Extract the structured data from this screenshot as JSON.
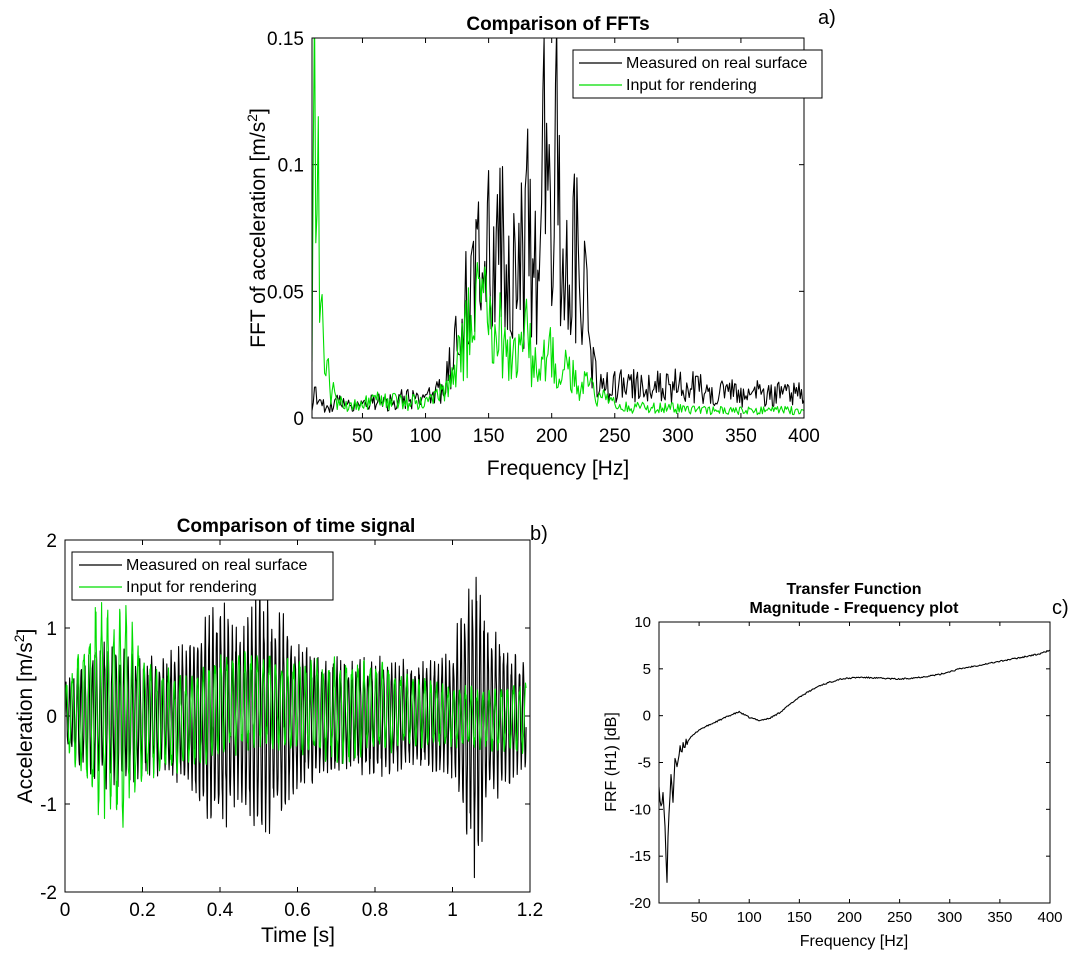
{
  "chart_data": [
    {
      "panel": "a)",
      "type": "line",
      "title": "Comparison of FFTs",
      "xlabel": "Frequency [Hz]",
      "ylabel_main": "FFT of acceleration [m/s",
      "ylabel_sup": "2",
      "ylabel_close": "]",
      "xlim": [
        10,
        400
      ],
      "ylim": [
        0,
        0.15
      ],
      "xticks": [
        50,
        100,
        150,
        200,
        250,
        300,
        350,
        400
      ],
      "yticks": [
        0,
        0.05,
        0.1,
        0.15
      ],
      "ytick_labels": [
        "0",
        "0.05",
        "0.1",
        "0.15"
      ],
      "legend_position": "top-right",
      "series": [
        {
          "name": "Measured on real surface",
          "color": "#000000",
          "x": [
            10,
            15,
            20,
            30,
            40,
            50,
            60,
            70,
            80,
            90,
            100,
            110,
            115,
            120,
            125,
            130,
            135,
            140,
            143,
            146,
            150,
            155,
            160,
            163,
            166,
            170,
            175,
            178,
            181,
            185,
            190,
            193,
            195,
            197,
            200,
            203,
            205,
            208,
            212,
            215,
            218,
            222,
            226,
            230,
            235,
            240,
            250,
            260,
            270,
            280,
            290,
            300,
            310,
            320,
            330,
            340,
            350,
            360,
            370,
            380,
            390,
            400
          ],
          "y": [
            0.006,
            0.011,
            0.004,
            0.006,
            0.005,
            0.006,
            0.007,
            0.006,
            0.008,
            0.007,
            0.008,
            0.01,
            0.014,
            0.02,
            0.028,
            0.038,
            0.052,
            0.065,
            0.083,
            0.06,
            0.07,
            0.05,
            0.075,
            0.058,
            0.07,
            0.055,
            0.072,
            0.05,
            0.08,
            0.055,
            0.07,
            0.1,
            0.133,
            0.095,
            0.055,
            0.11,
            0.09,
            0.06,
            0.082,
            0.055,
            0.065,
            0.058,
            0.048,
            0.03,
            0.018,
            0.012,
            0.012,
            0.013,
            0.012,
            0.014,
            0.012,
            0.013,
            0.012,
            0.011,
            0.01,
            0.011,
            0.009,
            0.01,
            0.009,
            0.01,
            0.011,
            0.009
          ]
        },
        {
          "name": "Input for rendering",
          "color": "#00dd00",
          "x": [
            10,
            11,
            12,
            13,
            14,
            15,
            16,
            18,
            20,
            22,
            25,
            28,
            32,
            36,
            40,
            50,
            60,
            70,
            80,
            90,
            100,
            110,
            120,
            125,
            130,
            135,
            140,
            145,
            150,
            155,
            160,
            165,
            170,
            175,
            180,
            185,
            190,
            195,
            200,
            205,
            210,
            215,
            220,
            225,
            230,
            240,
            250,
            260,
            280,
            300,
            320,
            340,
            360,
            380,
            400
          ],
          "y": [
            0.045,
            0.08,
            0.12,
            0.147,
            0.1,
            0.085,
            0.05,
            0.035,
            0.025,
            0.018,
            0.012,
            0.008,
            0.006,
            0.005,
            0.004,
            0.006,
            0.007,
            0.006,
            0.007,
            0.006,
            0.007,
            0.008,
            0.012,
            0.02,
            0.028,
            0.035,
            0.04,
            0.045,
            0.038,
            0.032,
            0.035,
            0.025,
            0.03,
            0.02,
            0.032,
            0.022,
            0.02,
            0.025,
            0.028,
            0.02,
            0.022,
            0.018,
            0.016,
            0.014,
            0.011,
            0.008,
            0.005,
            0.004,
            0.004,
            0.004,
            0.003,
            0.003,
            0.003,
            0.003,
            0.003
          ]
        }
      ]
    },
    {
      "panel": "b)",
      "type": "line",
      "title": "Comparison of time signal",
      "xlabel": "Time [s]",
      "ylabel_main": "Acceleration [m/s",
      "ylabel_sup": "2",
      "ylabel_close": "]",
      "xlim": [
        0,
        1.2
      ],
      "ylim": [
        -2,
        2
      ],
      "xticks": [
        0,
        0.2,
        0.4,
        0.6,
        0.8,
        1,
        1.2
      ],
      "xtick_labels": [
        "0",
        "0.2",
        "0.4",
        "0.6",
        "0.8",
        "1",
        "1.2"
      ],
      "yticks": [
        -2,
        -1,
        0,
        1,
        2
      ],
      "legend_position": "top-left",
      "series": [
        {
          "name": "Measured on real surface",
          "color": "#000000",
          "t_end": 1.19,
          "carrier_hz": 100,
          "envelope_t": [
            0,
            0.05,
            0.1,
            0.15,
            0.2,
            0.25,
            0.3,
            0.35,
            0.4,
            0.45,
            0.5,
            0.55,
            0.6,
            0.65,
            0.7,
            0.75,
            0.8,
            0.85,
            0.9,
            0.95,
            1.0,
            1.03,
            1.06,
            1.08,
            1.1,
            1.13,
            1.16,
            1.19
          ],
          "envelope_amp": [
            0.3,
            0.55,
            0.7,
            0.65,
            0.6,
            0.55,
            0.7,
            0.9,
            1.15,
            0.8,
            1.2,
            1.05,
            0.75,
            0.6,
            0.55,
            0.55,
            0.6,
            0.55,
            0.5,
            0.55,
            0.6,
            1.2,
            1.55,
            1.1,
            0.85,
            0.7,
            0.6,
            0.5
          ]
        },
        {
          "name": "Input for rendering",
          "color": "#00dd00",
          "t_end": 1.19,
          "carrier_hz": 65,
          "envelope_t": [
            0,
            0.05,
            0.08,
            0.12,
            0.15,
            0.2,
            0.3,
            0.4,
            0.5,
            0.6,
            0.7,
            0.8,
            0.9,
            1.0,
            1.1,
            1.19
          ],
          "envelope_amp": [
            0.35,
            0.7,
            1.05,
            1.0,
            1.1,
            0.6,
            0.45,
            0.5,
            0.45,
            0.45,
            0.5,
            0.45,
            0.35,
            0.3,
            0.3,
            0.35
          ],
          "offset_t": [
            0,
            0.1,
            0.2,
            0.3,
            0.4,
            0.5,
            0.6,
            0.7,
            0.8,
            0.9,
            1.0,
            1.1,
            1.19
          ],
          "offset": [
            0,
            0.1,
            0.0,
            -0.1,
            0.1,
            0.2,
            0.1,
            0.05,
            0.1,
            0.05,
            0.0,
            -0.05,
            0.0
          ]
        }
      ]
    },
    {
      "panel": "c)",
      "type": "line",
      "title_line1": "Transfer Function",
      "title_line2": "Magnitude - Frequency plot",
      "xlabel": "Frequency [Hz]",
      "ylabel": "FRF (H1) [dB]",
      "xlim": [
        10,
        400
      ],
      "ylim": [
        -20,
        10
      ],
      "xticks": [
        50,
        100,
        150,
        200,
        250,
        300,
        350,
        400
      ],
      "yticks": [
        -20,
        -15,
        -10,
        -5,
        0,
        5,
        10
      ],
      "series": [
        {
          "name": "",
          "color": "#000000",
          "x": [
            10,
            12,
            14,
            16,
            18,
            19,
            20,
            22,
            24,
            26,
            28,
            30,
            35,
            40,
            50,
            60,
            70,
            80,
            90,
            100,
            110,
            120,
            130,
            150,
            170,
            190,
            210,
            230,
            250,
            270,
            290,
            310,
            330,
            350,
            370,
            390,
            400
          ],
          "y": [
            -7,
            -10,
            -8.5,
            -12,
            -17.5,
            -13,
            -11,
            -6,
            -9,
            -4.5,
            -6,
            -4,
            -3,
            -2.5,
            -1.5,
            -1,
            -0.5,
            0,
            0.4,
            -0.2,
            -0.5,
            -0.3,
            0.3,
            2,
            3.2,
            3.9,
            4.1,
            4.0,
            3.9,
            4.1,
            4.4,
            5.0,
            5.4,
            5.8,
            6.2,
            6.6,
            7.0
          ]
        }
      ]
    }
  ]
}
